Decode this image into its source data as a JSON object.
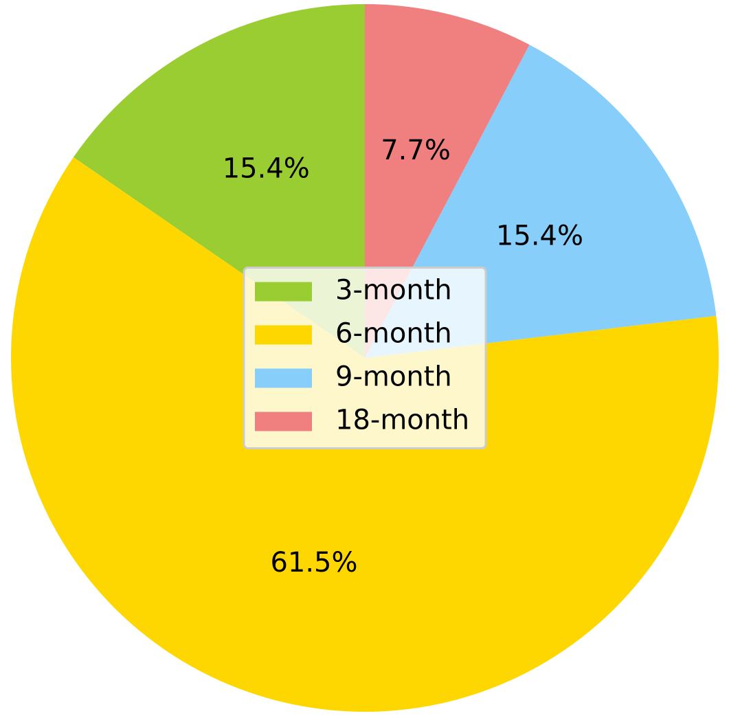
{
  "chart_data": {
    "type": "pie",
    "categories": [
      "3-month",
      "6-month",
      "9-month",
      "18-month"
    ],
    "values": [
      15.4,
      61.5,
      15.4,
      7.7
    ],
    "value_labels": [
      "15.4%",
      "61.5%",
      "15.4%",
      "7.7%"
    ],
    "colors": [
      "#9acd32",
      "#ffd700",
      "#87cefa",
      "#f08080"
    ],
    "start_angle": 90,
    "direction": "counterclockwise",
    "legend": "center"
  }
}
